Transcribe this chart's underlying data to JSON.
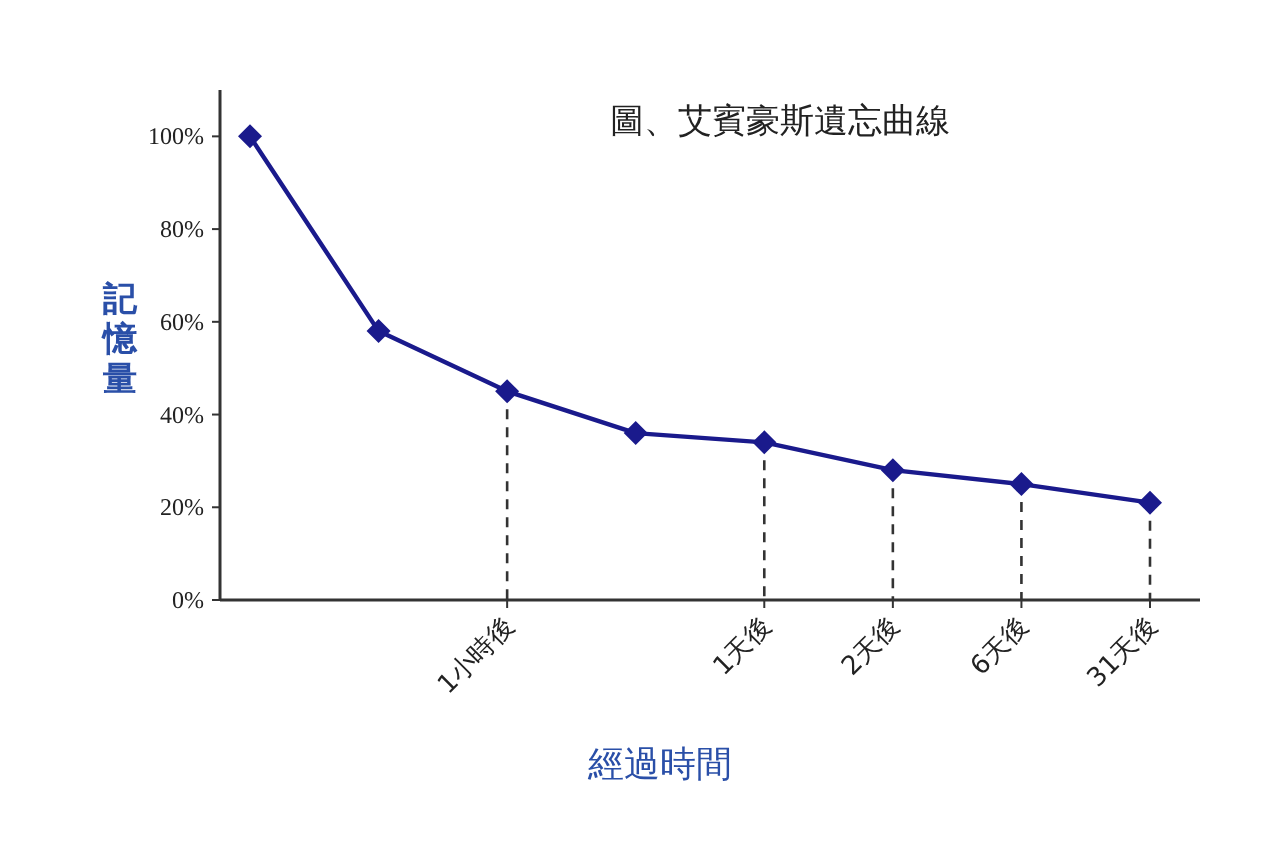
{
  "chart_data": {
    "type": "line",
    "title": "圖、艾賓豪斯遺忘曲線",
    "xlabel": "經過時間",
    "ylabel": "記憶量",
    "categories": [
      null,
      null,
      "1小時後",
      null,
      "1天後",
      "2天後",
      "6天後",
      "31天後"
    ],
    "series": [
      {
        "color": "#1a1a8c",
        "values": [
          100,
          58,
          45,
          36,
          34,
          28,
          25,
          21
        ]
      }
    ],
    "ylim": [
      0,
      110
    ],
    "yticks": [
      {
        "value": 0,
        "label": "0%"
      },
      {
        "value": 20,
        "label": "20%"
      },
      {
        "value": 40,
        "label": "40%"
      },
      {
        "value": 60,
        "label": "60%"
      },
      {
        "value": 80,
        "label": "80%"
      },
      {
        "value": 100,
        "label": "100%"
      }
    ],
    "ref_lines": [
      {
        "axis": "x",
        "value": "1小時後",
        "line_style": "dashed",
        "color": "#333333"
      },
      {
        "axis": "x",
        "value": "1天後",
        "line_style": "dashed",
        "color": "#333333"
      },
      {
        "axis": "x",
        "value": "2天後",
        "line_style": "dashed",
        "color": "#333333"
      },
      {
        "axis": "x",
        "value": "6天後",
        "line_style": "dashed",
        "color": "#333333"
      },
      {
        "axis": "x",
        "value": "31天後",
        "line_style": "dashed",
        "color": "#333333"
      }
    ],
    "marker": "diamond",
    "line_style": "solid"
  }
}
